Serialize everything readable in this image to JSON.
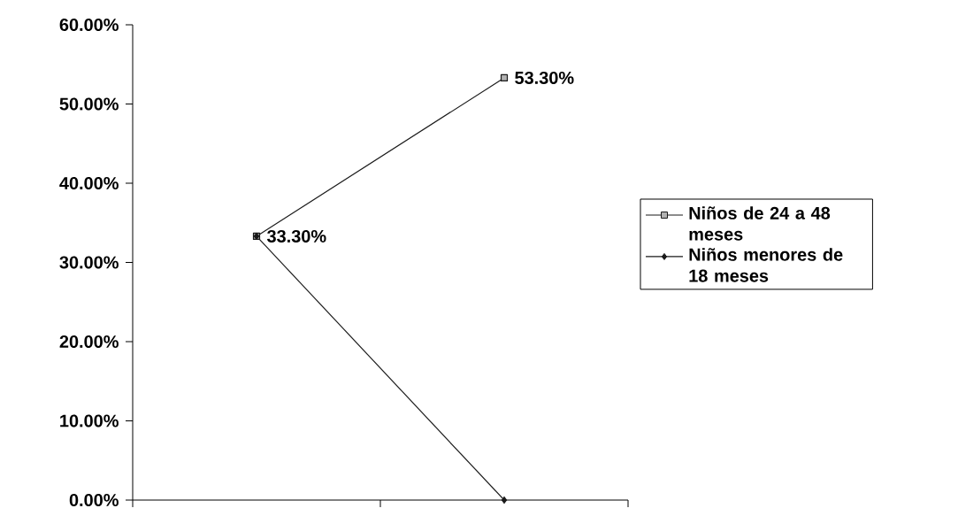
{
  "chart_data": {
    "type": "line",
    "categories": [
      null,
      null
    ],
    "series": [
      {
        "name": "Niños de 24 a 48 meses",
        "color": "#1a1a1a",
        "marker": "square",
        "values": [
          33.3,
          53.3
        ],
        "value_labels": [
          "33.30%",
          "53.30%"
        ]
      },
      {
        "name": "Niños menores de 18 meses",
        "color": "#1a1a1a",
        "marker": "diamond",
        "values": [
          33.3,
          0
        ]
      }
    ],
    "ylim": [
      0,
      60
    ],
    "yticks": [
      {
        "value": 0,
        "label": "0.00%"
      },
      {
        "value": 10,
        "label": "10.00%"
      },
      {
        "value": 20,
        "label": "20.00%"
      },
      {
        "value": 30,
        "label": "30.00%"
      },
      {
        "value": 40,
        "label": "40.00%"
      },
      {
        "value": 50,
        "label": "50.00%"
      },
      {
        "value": 60,
        "label": "60.00%"
      }
    ],
    "legend": "right",
    "grid": false,
    "line_style": "solid"
  }
}
